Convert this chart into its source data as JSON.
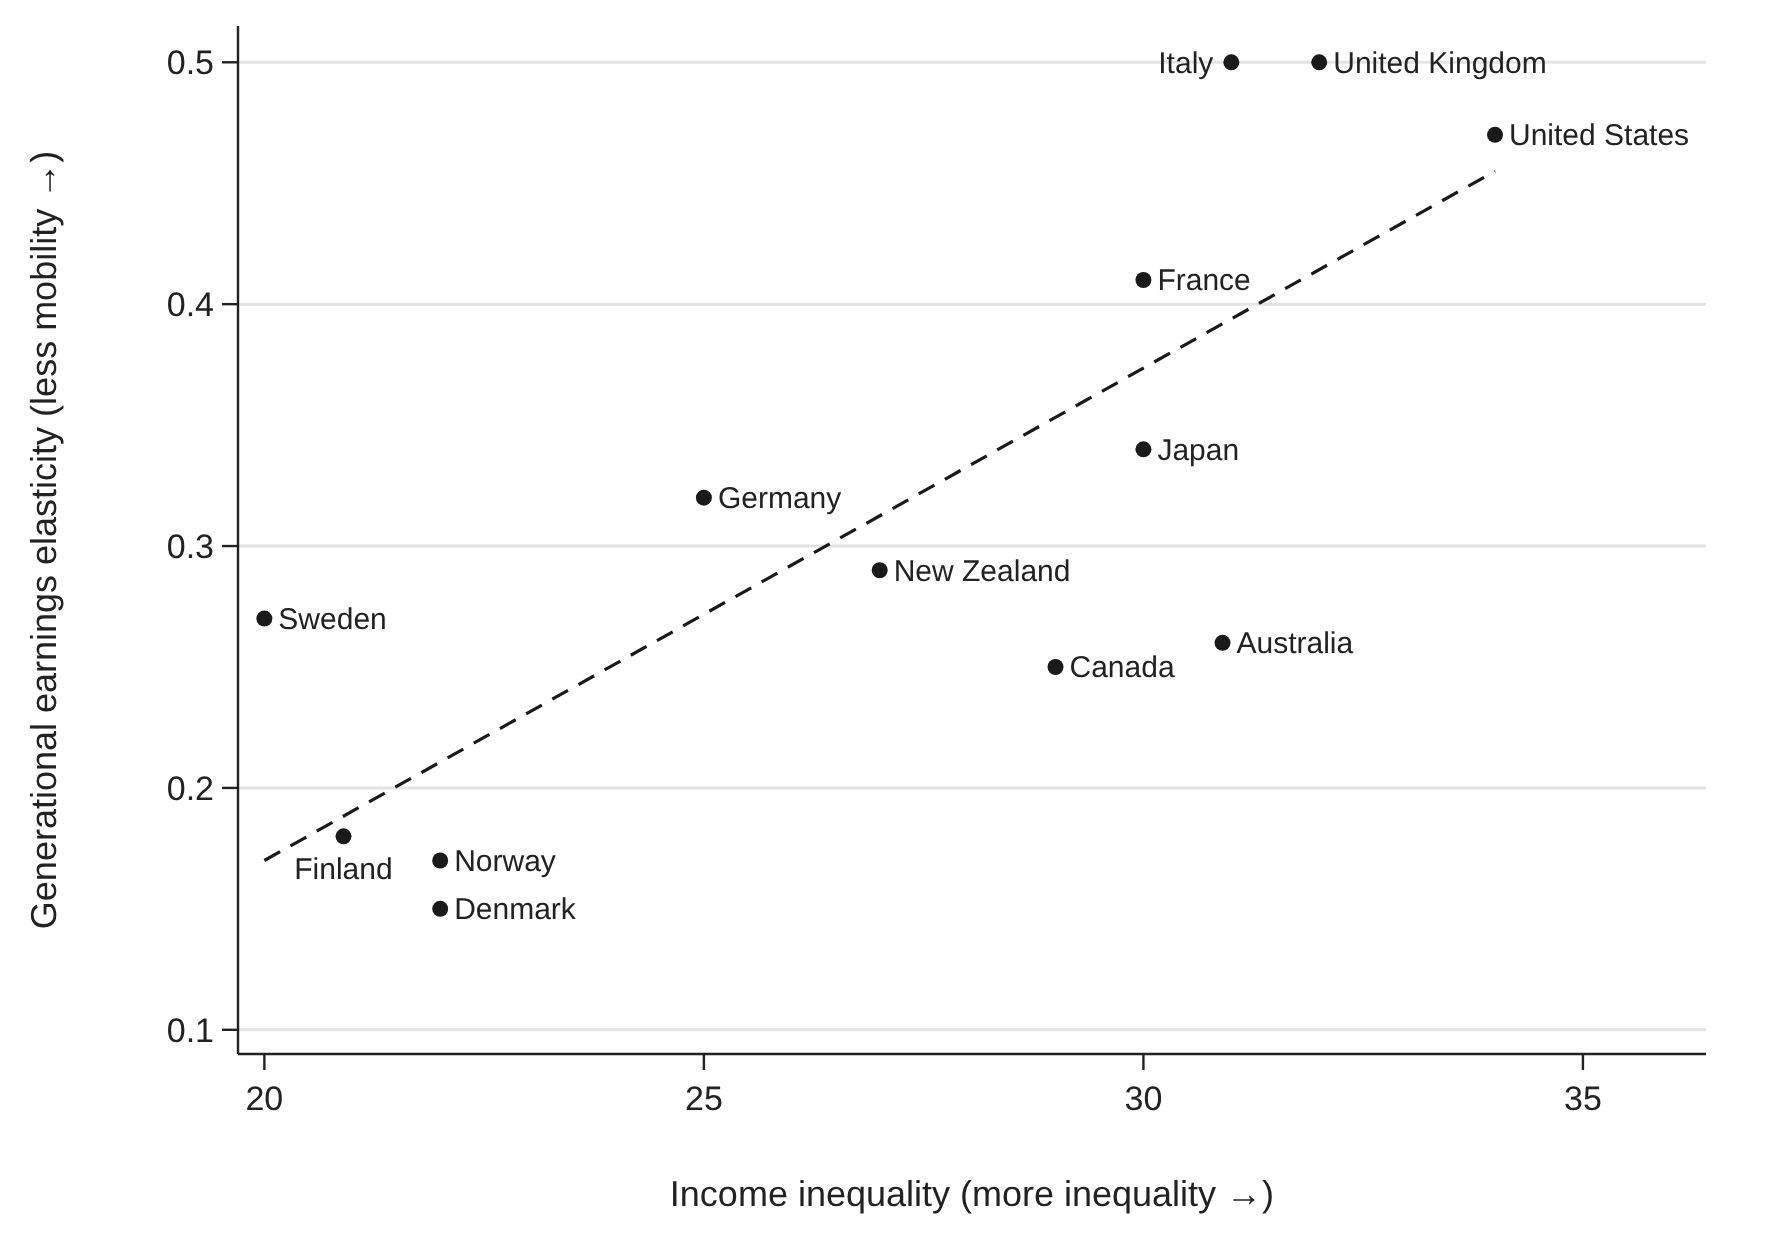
{
  "chart_data": {
    "type": "scatter",
    "xlabel": "Income inequality (more inequality →)",
    "ylabel": "Generational earnings elasticity (less mobility →)",
    "xlim": [
      19.7,
      36.4
    ],
    "ylim": [
      0.09,
      0.515
    ],
    "xticks": [
      20,
      25,
      30,
      35
    ],
    "yticks": [
      0.1,
      0.2,
      0.3,
      0.4,
      0.5
    ],
    "grid": "y",
    "marker": "circle",
    "series": [
      {
        "color": "#1a1a1a",
        "x": [
          31,
          32,
          34,
          30,
          30,
          25,
          27,
          20,
          29,
          30.9,
          20.9,
          22,
          22
        ],
        "values": [
          0.5,
          0.5,
          0.47,
          0.41,
          0.34,
          0.32,
          0.29,
          0.27,
          0.25,
          0.26,
          0.18,
          0.17,
          0.15
        ]
      },
      {
        "type": "line",
        "color": "#1a1a1a",
        "line_style": "dashed",
        "marker": "none",
        "x": [
          20,
          34
        ],
        "values": [
          0.17,
          0.455
        ]
      }
    ],
    "annotations": [
      {
        "text": "Italy",
        "x": 31,
        "y": 0.5
      },
      {
        "text": "United Kingdom",
        "x": 32,
        "y": 0.5
      },
      {
        "text": "United States",
        "x": 34,
        "y": 0.47
      },
      {
        "text": "France",
        "x": 30,
        "y": 0.41
      },
      {
        "text": "Japan",
        "x": 30,
        "y": 0.34
      },
      {
        "text": "Germany",
        "x": 25,
        "y": 0.32
      },
      {
        "text": "New Zealand",
        "x": 27,
        "y": 0.29
      },
      {
        "text": "Sweden",
        "x": 20,
        "y": 0.27
      },
      {
        "text": "Canada",
        "x": 29,
        "y": 0.25
      },
      {
        "text": "Australia",
        "x": 30.9,
        "y": 0.26
      },
      {
        "text": "Finland",
        "x": 20.9,
        "y": 0.18
      },
      {
        "text": "Norway",
        "x": 22,
        "y": 0.17
      },
      {
        "text": "Denmark",
        "x": 22,
        "y": 0.15
      }
    ]
  }
}
